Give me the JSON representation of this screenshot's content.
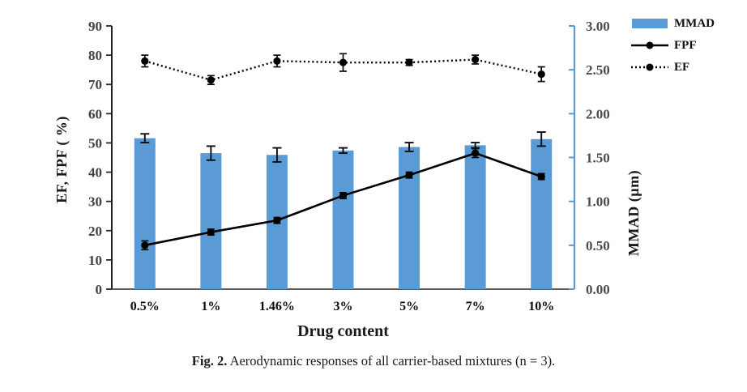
{
  "figure": {
    "caption": {
      "label": "Fig. 2.",
      "text": "Aerodynamic responses of all carrier-based mixtures (n = 3)."
    }
  },
  "chart_data": {
    "type": "combo-bar-line",
    "title": "",
    "xlabel": "Drug content",
    "categories": [
      "0.5%",
      "1%",
      "1.46%",
      "3%",
      "5%",
      "7%",
      "10%"
    ],
    "left_axis": {
      "label": "EF, FPF ( %)",
      "min": 0,
      "max": 90,
      "tick_step": 10,
      "ticks": [
        "90",
        "80",
        "70",
        "60",
        "50",
        "40",
        "30",
        "20",
        "10",
        "0"
      ]
    },
    "right_axis": {
      "label": "MMAD (µm)",
      "min": 0,
      "max": 3,
      "tick_step": 0.5,
      "ticks": [
        "3.00",
        "2.50",
        "2.00",
        "1.50",
        "1.00",
        "0.50",
        "0.00"
      ],
      "axis_color": "#5b9bd5"
    },
    "grid": false,
    "legend_position": "top-right",
    "series": [
      {
        "name": "MMAD",
        "type": "bar",
        "axis": "right",
        "color": "#5b9bd5",
        "values": [
          1.72,
          1.55,
          1.53,
          1.58,
          1.62,
          1.64,
          1.71
        ],
        "errors": [
          0.05,
          0.08,
          0.08,
          0.03,
          0.05,
          0.03,
          0.08
        ]
      },
      {
        "name": "FPF",
        "type": "line",
        "axis": "left",
        "color": "#000000",
        "marker": "circle",
        "values": [
          15,
          19.5,
          23.5,
          32,
          39,
          46.5,
          38.5
        ],
        "errors": [
          1.5,
          1,
          1,
          1,
          1,
          1.5,
          1
        ]
      },
      {
        "name": "EF",
        "type": "line-dotted",
        "axis": "left",
        "color": "#000000",
        "marker": "circle",
        "values": [
          78,
          71.5,
          78,
          77.5,
          77.5,
          78.5,
          73.5
        ],
        "errors": [
          2,
          1.5,
          2,
          3,
          1,
          1.5,
          2.5
        ]
      }
    ]
  }
}
